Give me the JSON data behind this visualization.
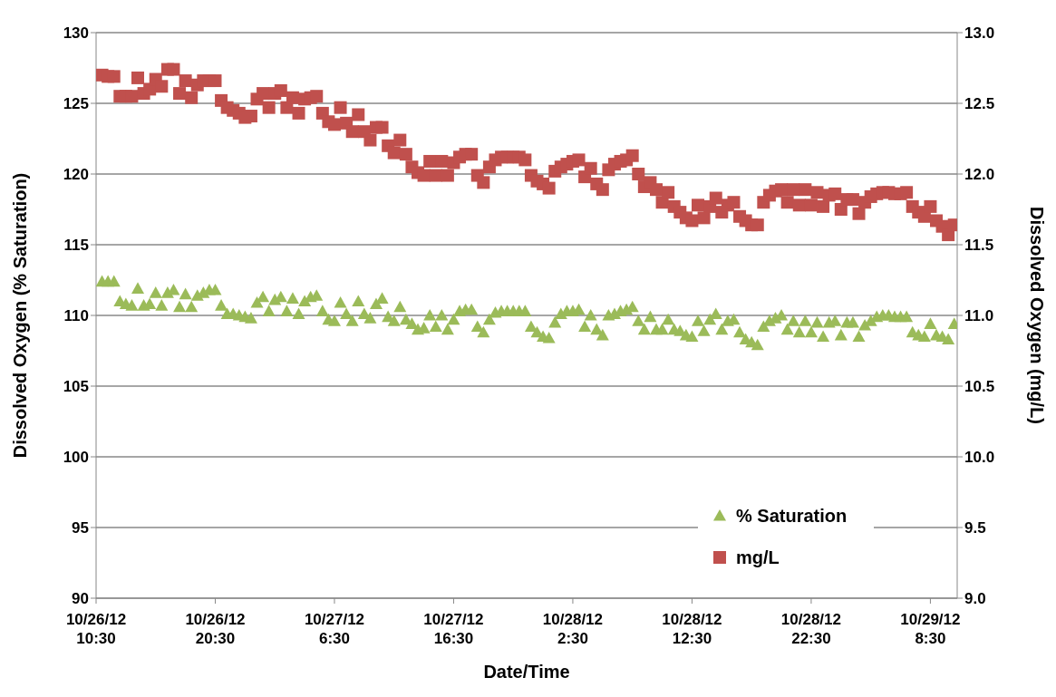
{
  "chart_data": {
    "type": "scatter",
    "xlabel": "Date/Time",
    "ylabel": "Dissolved Oxygen (% Saturation)",
    "y2label": "Dissolved Oxygen (mg/L)",
    "x": [
      "--10-26T11:00",
      "--10-26T11:30",
      "--10-26T12:00",
      "--10-26T12:30",
      "--10-26T13:00",
      "--10-26T13:30",
      "--10-26T14:00",
      "--10-26T14:30",
      "--10-26T15:00",
      "--10-26T15:30",
      "--10-26T16:00",
      "--10-26T16:30",
      "--10-26T17:00",
      "--10-26T17:30",
      "--10-26T18:00",
      "--10-26T18:30",
      "--10-26T19:00",
      "--10-26T19:30",
      "--10-26T20:00",
      "--10-26T20:30",
      "--10-26T21:00",
      "--10-26T21:30",
      "--10-26T22:00",
      "--10-26T22:30",
      "--10-26T23:00",
      "--10-26T23:30",
      "--10-27T00:00",
      "--10-27T00:30",
      "--10-27T01:00",
      "--10-27T01:30",
      "--10-27T02:00",
      "--10-27T02:30",
      "--10-27T03:00",
      "--10-27T03:30",
      "--10-27T04:00",
      "--10-27T04:30",
      "--10-27T05:00",
      "--10-27T05:30",
      "--10-27T06:00",
      "--10-27T06:30",
      "--10-27T07:00",
      "--10-27T07:30",
      "--10-27T08:00",
      "--10-27T08:30",
      "--10-27T09:00",
      "--10-27T09:30",
      "--10-27T10:00",
      "--10-27T10:30",
      "--10-27T11:00",
      "--10-27T11:30",
      "--10-27T12:00",
      "--10-27T12:30",
      "--10-27T13:00",
      "--10-27T13:30",
      "--10-27T14:00",
      "--10-27T14:30",
      "--10-27T15:00",
      "--10-27T15:30",
      "--10-27T16:00",
      "--10-27T16:30",
      "--10-27T17:00",
      "--10-27T17:30",
      "--10-27T18:00",
      "--10-27T18:30",
      "--10-27T19:00",
      "--10-27T19:30",
      "--10-27T20:00",
      "--10-27T20:30",
      "--10-27T21:00",
      "--10-27T21:30",
      "--10-27T22:00",
      "--10-27T22:30",
      "--10-27T23:00",
      "--10-27T23:30",
      "--10-28T00:00",
      "--10-28T00:30",
      "--10-28T01:00",
      "--10-28T01:30",
      "--10-28T02:00",
      "--10-28T02:30",
      "--10-28T03:00",
      "--10-28T03:30",
      "--10-28T04:00",
      "--10-28T04:30",
      "--10-28T05:00",
      "--10-28T05:30",
      "--10-28T06:00",
      "--10-28T06:30",
      "--10-28T07:00",
      "--10-28T07:30",
      "--10-28T08:00",
      "--10-28T08:30",
      "--10-28T09:00",
      "--10-28T09:30",
      "--10-28T10:00",
      "--10-28T10:30",
      "--10-28T11:00",
      "--10-28T11:30",
      "--10-28T12:00",
      "--10-28T12:30",
      "--10-28T13:00",
      "--10-28T13:30",
      "--10-28T14:00",
      "--10-28T14:30",
      "--10-28T15:00",
      "--10-28T15:30",
      "--10-28T16:00",
      "--10-28T16:30",
      "--10-28T17:00",
      "--10-28T17:30",
      "--10-28T18:00",
      "--10-28T18:30",
      "--10-28T19:00",
      "--10-28T19:30",
      "--10-28T20:00",
      "--10-28T20:30",
      "--10-28T21:00",
      "--10-28T21:30",
      "--10-28T22:00",
      "--10-28T22:30",
      "--10-28T23:00",
      "--10-28T23:30",
      "--10-29T00:00",
      "--10-29T00:30",
      "--10-29T01:00",
      "--10-29T01:30",
      "--10-29T02:00",
      "--10-29T02:30",
      "--10-29T03:00",
      "--10-29T03:30",
      "--10-29T04:00",
      "--10-29T04:30",
      "--10-29T05:00",
      "--10-29T05:30",
      "--10-29T06:00",
      "--10-29T06:30",
      "--10-29T07:00",
      "--10-29T07:30",
      "--10-29T08:00",
      "--10-29T08:30",
      "--10-29T09:00",
      "--10-29T09:30",
      "--10-29T10:00",
      "--10-29T10:30"
    ],
    "xlim": [
      "--10-26T10:30",
      "--10-29T10:45"
    ],
    "xticks": [
      {
        "value": "--10-26T10:30",
        "label": "10/26/12\n10:30"
      },
      {
        "value": "--10-26T20:30",
        "label": "10/26/12\n20:30"
      },
      {
        "value": "--10-27T06:30",
        "label": "10/27/12\n6:30"
      },
      {
        "value": "--10-27T16:30",
        "label": "10/27/12\n16:30"
      },
      {
        "value": "--10-28T02:30",
        "label": "10/28/12\n2:30"
      },
      {
        "value": "--10-28T12:30",
        "label": "10/28/12\n12:30"
      },
      {
        "value": "--10-28T22:30",
        "label": "10/28/12\n22:30"
      },
      {
        "value": "--10-29T08:30",
        "label": "10/29/12\n8:30"
      }
    ],
    "ylim": [
      90,
      130
    ],
    "yticks": [
      90,
      95,
      100,
      105,
      110,
      115,
      120,
      125,
      130
    ],
    "y2lim": [
      9,
      13
    ],
    "y2ticks": [
      {
        "value": 9,
        "label": "9.0"
      },
      {
        "value": 9.5,
        "label": "9.5"
      },
      {
        "value": 10,
        "label": "10.0"
      },
      {
        "value": 10.5,
        "label": "10.5"
      },
      {
        "value": 11,
        "label": "11.0"
      },
      {
        "value": 11.5,
        "label": "11.5"
      },
      {
        "value": 12,
        "label": "12.0"
      },
      {
        "value": 12.5,
        "label": "12.5"
      },
      {
        "value": 13,
        "label": "13.0"
      }
    ],
    "grid": "y",
    "legend": "bottom right",
    "series": [
      {
        "name": "% Saturation",
        "color": "#9bbb59",
        "marker": "triangle",
        "values": [
          112.4,
          112.4,
          112.4,
          111.0,
          110.8,
          110.7,
          111.9,
          110.7,
          110.8,
          111.6,
          110.7,
          111.6,
          111.8,
          110.6,
          111.5,
          110.6,
          111.4,
          111.6,
          111.8,
          111.8,
          110.7,
          110.1,
          110.1,
          110.0,
          109.9,
          109.8,
          110.9,
          111.3,
          110.3,
          111.1,
          111.3,
          110.3,
          111.2,
          110.1,
          111.0,
          111.3,
          111.4,
          110.3,
          109.7,
          109.6,
          110.9,
          110.1,
          109.6,
          111.0,
          110.1,
          109.8,
          110.8,
          111.2,
          109.9,
          109.6,
          110.6,
          109.7,
          109.4,
          109.0,
          109.1,
          110.0,
          109.2,
          110.0,
          109.0,
          109.7,
          110.3,
          110.4,
          110.4,
          109.2,
          108.8,
          109.7,
          110.2,
          110.3,
          110.3,
          110.3,
          110.3,
          110.3,
          109.2,
          108.8,
          108.5,
          108.4,
          109.5,
          110.1,
          110.3,
          110.3,
          110.4,
          109.2,
          110.0,
          109.0,
          108.6,
          110.0,
          110.1,
          110.3,
          110.4,
          110.6,
          109.6,
          109.0,
          109.9,
          109.0,
          109.0,
          109.7,
          109.0,
          108.9,
          108.6,
          108.5,
          109.6,
          108.9,
          109.7,
          110.1,
          109.0,
          109.6,
          109.7,
          108.8,
          108.3,
          108.1,
          107.9,
          109.2,
          109.6,
          109.8,
          110.0,
          109.0,
          109.6,
          108.8,
          109.6,
          108.8,
          109.5,
          108.5,
          109.5,
          109.6,
          108.6,
          109.5,
          109.5,
          108.5,
          109.3,
          109.6,
          109.9,
          110.0,
          110.0,
          109.9,
          109.9,
          109.9,
          108.8,
          108.6,
          108.5,
          109.4,
          108.6,
          108.5,
          108.3,
          109.4
        ]
      },
      {
        "name": "mg/L",
        "color": "#c0504d",
        "marker": "square",
        "axis": "y2",
        "values": [
          12.7,
          12.69,
          12.69,
          12.55,
          12.55,
          12.55,
          12.68,
          12.57,
          12.6,
          12.67,
          12.62,
          12.74,
          12.74,
          12.57,
          12.66,
          12.54,
          12.63,
          12.66,
          12.66,
          12.66,
          12.52,
          12.47,
          12.45,
          12.43,
          12.4,
          12.41,
          12.53,
          12.57,
          12.47,
          12.57,
          12.59,
          12.47,
          12.54,
          12.43,
          12.53,
          12.54,
          12.55,
          12.43,
          12.37,
          12.35,
          12.47,
          12.36,
          12.3,
          12.42,
          12.3,
          12.24,
          12.33,
          12.33,
          12.2,
          12.15,
          12.24,
          12.14,
          12.05,
          12.01,
          11.99,
          12.09,
          11.99,
          12.09,
          11.99,
          12.08,
          12.12,
          12.14,
          12.14,
          11.99,
          11.94,
          12.05,
          12.1,
          12.12,
          12.12,
          12.12,
          12.12,
          12.1,
          11.99,
          11.95,
          11.93,
          11.9,
          12.02,
          12.05,
          12.07,
          12.09,
          12.1,
          11.98,
          12.04,
          11.93,
          11.89,
          12.03,
          12.07,
          12.09,
          12.1,
          12.13,
          12.0,
          11.91,
          11.94,
          11.89,
          11.8,
          11.87,
          11.77,
          11.73,
          11.69,
          11.67,
          11.78,
          11.69,
          11.77,
          11.83,
          11.73,
          11.78,
          11.8,
          11.7,
          11.67,
          11.64,
          11.64,
          11.8,
          11.85,
          11.88,
          11.89,
          11.8,
          11.89,
          11.78,
          11.89,
          11.78,
          11.87,
          11.77,
          11.85,
          11.86,
          11.75,
          11.82,
          11.82,
          11.72,
          11.8,
          11.84,
          11.86,
          11.87,
          11.87,
          11.86,
          11.86,
          11.87,
          11.77,
          11.73,
          11.7,
          11.77,
          11.67,
          11.63,
          11.57,
          11.64
        ]
      }
    ]
  }
}
